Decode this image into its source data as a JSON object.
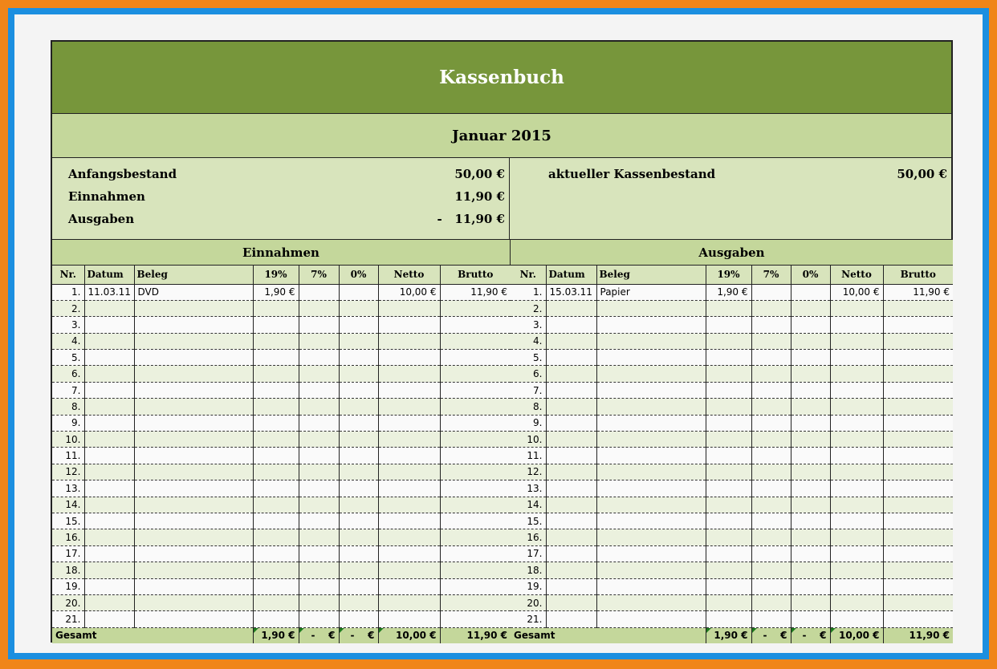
{
  "title": "Kassenbuch",
  "month": "Januar 2015",
  "summary": {
    "anfangsbestand_label": "Anfangsbestand",
    "anfangsbestand": "50,00 €",
    "einnahmen_label": "Einnahmen",
    "einnahmen": "11,90 €",
    "ausgaben_label": "Ausgaben",
    "ausgaben": "-   11,90 €",
    "kassenbestand_label": "aktueller Kassenbestand",
    "kassenbestand": "50,00 €"
  },
  "columns": [
    "Nr.",
    "Datum",
    "Beleg",
    "19%",
    "7%",
    "0%",
    "Netto",
    "Brutto"
  ],
  "einnahmen": {
    "title": "Einnahmen",
    "rows": [
      {
        "nr": "1.",
        "datum": "11.03.11",
        "beleg": "DVD",
        "v19": "1,90 €",
        "v7": "",
        "v0": "",
        "netto": "10,00 €",
        "brutto": "11,90 €"
      }
    ],
    "total": {
      "label": "Gesamt",
      "v19": "1,90 €",
      "v7": "-    €",
      "v0": "-    €",
      "netto": "10,00 €",
      "brutto": "11,90 €"
    }
  },
  "ausgaben": {
    "title": "Ausgaben",
    "rows": [
      {
        "nr": "1.",
        "datum": "15.03.11",
        "beleg": "Papier",
        "v19": "1,90 €",
        "v7": "",
        "v0": "",
        "netto": "10,00 €",
        "brutto": "11,90 €"
      }
    ],
    "total": {
      "label": "Gesamt",
      "v19": "1,90 €",
      "v7": "-    €",
      "v0": "-    €",
      "netto": "10,00 €",
      "brutto": "11,90 €"
    }
  },
  "row_numbers": [
    "1.",
    "2.",
    "3.",
    "4.",
    "5.",
    "6.",
    "7.",
    "8.",
    "9.",
    "10.",
    "11.",
    "12.",
    "13.",
    "14.",
    "15.",
    "16.",
    "17.",
    "18.",
    "19.",
    "20.",
    "21."
  ]
}
